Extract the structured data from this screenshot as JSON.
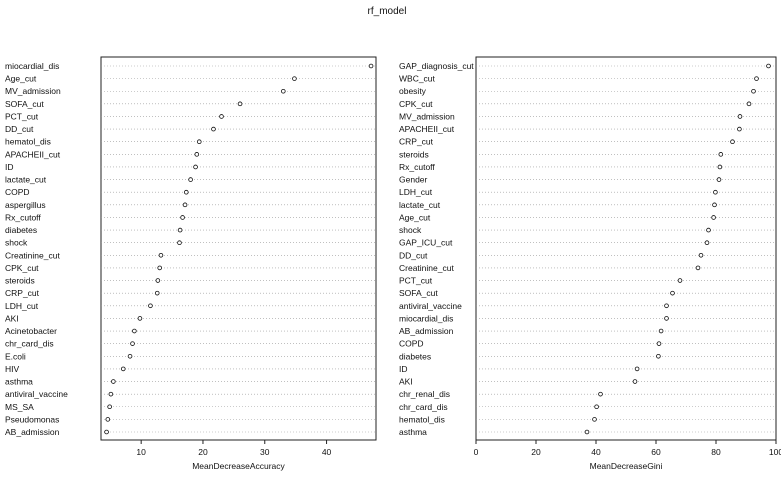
{
  "title": "rf_model",
  "chart_data": [
    {
      "type": "scatter",
      "style": "dotchart",
      "xlabel": "MeanDecreaseAccuracy",
      "xlim": [
        3.5,
        48
      ],
      "xticks": [
        10,
        20,
        30,
        40
      ],
      "grid": true,
      "categories": [
        "miocardial_dis",
        "Age_cut",
        "MV_admission",
        "SOFA_cut",
        "PCT_cut",
        "DD_cut",
        "hematol_dis",
        "APACHEII_cut",
        "ID",
        "lactate_cut",
        "COPD",
        "aspergillus",
        "Rx_cutoff",
        "diabetes",
        "shock",
        "Creatinine_cut",
        "CPK_cut",
        "steroids",
        "CRP_cut",
        "LDH_cut",
        "AKI",
        "Acinetobacter",
        "chr_card_dis",
        "E.coli",
        "HIV",
        "asthma",
        "antiviral_vaccine",
        "MS_SA",
        "Pseudomonas",
        "AB_admission"
      ],
      "values": [
        47.2,
        34.8,
        33.0,
        26.0,
        23.0,
        21.7,
        19.4,
        19.0,
        18.8,
        18.0,
        17.3,
        17.1,
        16.7,
        16.3,
        16.2,
        13.2,
        13.0,
        12.7,
        12.6,
        11.5,
        9.8,
        8.9,
        8.6,
        8.2,
        7.1,
        5.5,
        5.1,
        4.9,
        4.6,
        4.4
      ]
    },
    {
      "type": "scatter",
      "style": "dotchart",
      "xlabel": "MeanDecreaseGini",
      "xlim": [
        0,
        100
      ],
      "xticks": [
        0,
        20,
        40,
        60,
        80,
        100
      ],
      "grid": true,
      "categories": [
        "GAP_diagnosis_cut",
        "WBC_cut",
        "obesity",
        "CPK_cut",
        "MV_admission",
        "APACHEII_cut",
        "CRP_cut",
        "steroids",
        "Rx_cutoff",
        "Gender",
        "LDH_cut",
        "lactate_cut",
        "Age_cut",
        "shock",
        "GAP_ICU_cut",
        "DD_cut",
        "Creatinine_cut",
        "PCT_cut",
        "SOFA_cut",
        "antiviral_vaccine",
        "miocardial_dis",
        "AB_admission",
        "COPD",
        "diabetes",
        "ID",
        "AKI",
        "chr_renal_dis",
        "chr_card_dis",
        "hematol_dis",
        "asthma"
      ],
      "values": [
        97.5,
        93.5,
        92.5,
        91.0,
        88.0,
        87.8,
        85.5,
        81.6,
        81.3,
        81.0,
        79.8,
        79.5,
        79.2,
        77.5,
        77.0,
        75.0,
        74.0,
        68.0,
        65.5,
        63.5,
        63.5,
        61.7,
        61.0,
        60.8,
        53.7,
        53.0,
        41.5,
        40.2,
        39.5,
        37.0
      ]
    }
  ]
}
